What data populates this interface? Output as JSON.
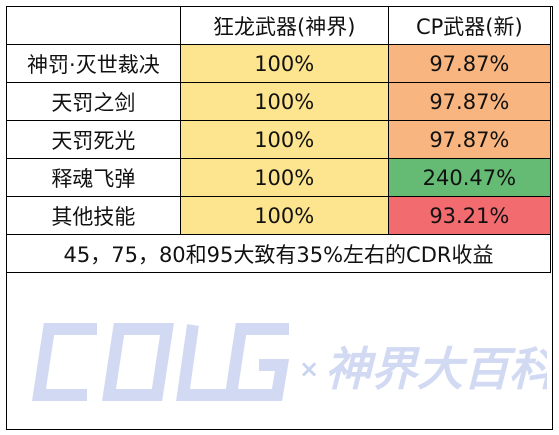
{
  "table": {
    "headers": [
      "",
      "狂龙武器(神界)",
      "CP武器(新)"
    ],
    "rows": [
      {
        "label": "神罚·灭世裁决",
        "col1": "100%",
        "col2": "97.87%",
        "col1_color": "#fde48f",
        "col2_color": "#f9b57f"
      },
      {
        "label": "天罚之剑",
        "col1": "100%",
        "col2": "97.87%",
        "col1_color": "#fde48f",
        "col2_color": "#f9b57f"
      },
      {
        "label": "天罚死光",
        "col1": "100%",
        "col2": "97.87%",
        "col1_color": "#fde48f",
        "col2_color": "#f9b57f"
      },
      {
        "label": "释魂飞弹",
        "col1": "100%",
        "col2": "240.47%",
        "col1_color": "#fde48f",
        "col2_color": "#65bb73"
      },
      {
        "label": "其他技能",
        "col1": "100%",
        "col2": "93.21%",
        "col1_color": "#fde48f",
        "col2_color": "#f26b6e"
      }
    ],
    "note": "45，75，80和95大致有35%左右的CDR收益"
  },
  "watermark": {
    "brand": "COLG",
    "separator": "×",
    "subtitle": "神界大百科",
    "color": "#c9d4f0"
  }
}
